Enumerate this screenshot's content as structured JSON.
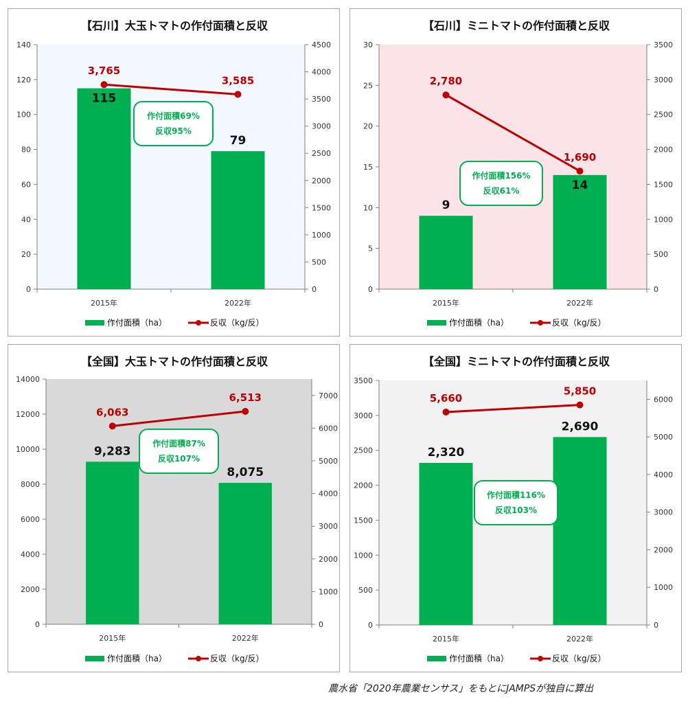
{
  "chart_data": [
    {
      "type": "bar+line",
      "title": "【石川】大玉トマトの作付面積と反収",
      "categories": [
        "2015年",
        "2022年"
      ],
      "series": [
        {
          "name": "作付面積（ha）",
          "type": "bar",
          "axis": "left",
          "values": [
            115,
            79
          ],
          "labels": [
            "115",
            "79"
          ]
        },
        {
          "name": "反収（kg/反）",
          "type": "line",
          "axis": "right",
          "values": [
            3765,
            3585
          ],
          "labels": [
            "3,765",
            "3,585"
          ]
        }
      ],
      "ylim_left": [
        0,
        140
      ],
      "yticks_left": [
        "0",
        "20",
        "40",
        "60",
        "80",
        "100",
        "120",
        "140"
      ],
      "ylim_right": [
        0,
        4500
      ],
      "yticks_right": [
        "0",
        "500",
        "1000",
        "1500",
        "2000",
        "2500",
        "3000",
        "3500",
        "4000",
        "4500"
      ],
      "callout": [
        "作付面積69%",
        "反収95%"
      ],
      "plot_bg": "#f2f8fe",
      "bar_label_color": "#111111",
      "legend_position": "bottom"
    },
    {
      "type": "bar+line",
      "title": "【石川】ミニトマトの作付面積と反収",
      "categories": [
        "2015年",
        "2022年"
      ],
      "series": [
        {
          "name": "作付面積（ha）",
          "type": "bar",
          "axis": "left",
          "values": [
            9,
            14
          ],
          "labels": [
            "9",
            "14"
          ]
        },
        {
          "name": "反収（kg/反）",
          "type": "line",
          "axis": "right",
          "values": [
            2780,
            1690
          ],
          "labels": [
            "2,780",
            "1,690"
          ]
        }
      ],
      "ylim_left": [
        0,
        30
      ],
      "yticks_left": [
        "0",
        "5",
        "10",
        "15",
        "20",
        "25",
        "30"
      ],
      "ylim_right": [
        0,
        3500
      ],
      "yticks_right": [
        "0",
        "500",
        "1000",
        "1500",
        "2000",
        "2500",
        "3000",
        "3500"
      ],
      "callout": [
        "作付面積156%",
        "反収61%"
      ],
      "plot_bg": "#fde4e8",
      "bar_label_color": "#111111",
      "legend_position": "bottom"
    },
    {
      "type": "bar+line",
      "title": "【全国】大玉トマトの作付面積と反収",
      "categories": [
        "2015年",
        "2022年"
      ],
      "series": [
        {
          "name": "作付面積（ha）",
          "type": "bar",
          "axis": "left",
          "values": [
            9283,
            8075
          ],
          "labels": [
            "9,283",
            "8,075"
          ]
        },
        {
          "name": "反収（kg/反）",
          "type": "line",
          "axis": "right",
          "values": [
            6063,
            6513
          ],
          "labels": [
            "6,063",
            "6,513"
          ]
        }
      ],
      "ylim_left": [
        0,
        14000
      ],
      "yticks_left": [
        "0",
        "2000",
        "4000",
        "6000",
        "8000",
        "10000",
        "12000",
        "14000"
      ],
      "ylim_right": [
        0,
        7500
      ],
      "yticks_right": [
        "0",
        "1000",
        "2000",
        "3000",
        "4000",
        "5000",
        "6000",
        "7000"
      ],
      "callout": [
        "作付面積87%",
        "反収107%"
      ],
      "plot_bg": "#d9d9d9",
      "bar_label_color": "#111111",
      "legend_position": "bottom"
    },
    {
      "type": "bar+line",
      "title": "【全国】ミニトマトの作付面積と反収",
      "categories": [
        "2015年",
        "2022年"
      ],
      "series": [
        {
          "name": "作付面積（ha）",
          "type": "bar",
          "axis": "left",
          "values": [
            2320,
            2690
          ],
          "labels": [
            "2,320",
            "2,690"
          ]
        },
        {
          "name": "反収（kg/反）",
          "type": "line",
          "axis": "right",
          "values": [
            5660,
            5850
          ],
          "labels": [
            "5,660",
            "5,850"
          ]
        }
      ],
      "ylim_left": [
        0,
        3500
      ],
      "yticks_left": [
        "0",
        "500",
        "1000",
        "1500",
        "2000",
        "2500",
        "3000",
        "3500"
      ],
      "ylim_right": [
        0,
        6500
      ],
      "yticks_right": [
        "0",
        "1000",
        "2000",
        "3000",
        "4000",
        "5000",
        "6000"
      ],
      "callout": [
        "作付面積116%",
        "反収103%"
      ],
      "plot_bg": "#f2f2f2",
      "bar_label_color": "#111111",
      "legend_position": "bottom"
    }
  ],
  "colors": {
    "bar": "#00b050",
    "line": "#c00000",
    "callout_border": "#00b050",
    "callout_text": "#00b050",
    "axis_text": "#333333"
  },
  "footer": "農水省「2020年農業センサス」をもとにJAMPSが独自に算出"
}
